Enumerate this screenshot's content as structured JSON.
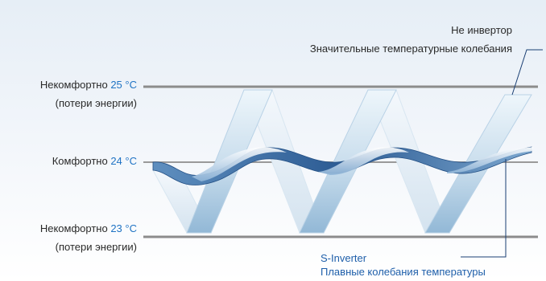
{
  "levels": {
    "upper": {
      "label": "Некомфортно",
      "temp": "25 °C",
      "note": "(потери энергии)"
    },
    "middle": {
      "label": "Комфортно",
      "temp": "24 °C"
    },
    "lower": {
      "label": "Некомфортно",
      "temp": "23 °C",
      "note": "(потери энергии)"
    }
  },
  "callouts": {
    "non_inverter": {
      "title": "Не инвертор",
      "subtitle": "Значительные температурные колебания"
    },
    "s_inverter": {
      "title": "S-Inverter",
      "subtitle": "Плавные колебания температуры"
    }
  },
  "colors": {
    "level_line": "#8c8c8c",
    "zigzag_light": "#e9f3fa",
    "zigzag_dark": "#9fc2dc",
    "wave_light": "#9cc0df",
    "wave_dark": "#2d5f98",
    "callout_line": "#1a3f73",
    "temp_text": "#1f73c4"
  }
}
